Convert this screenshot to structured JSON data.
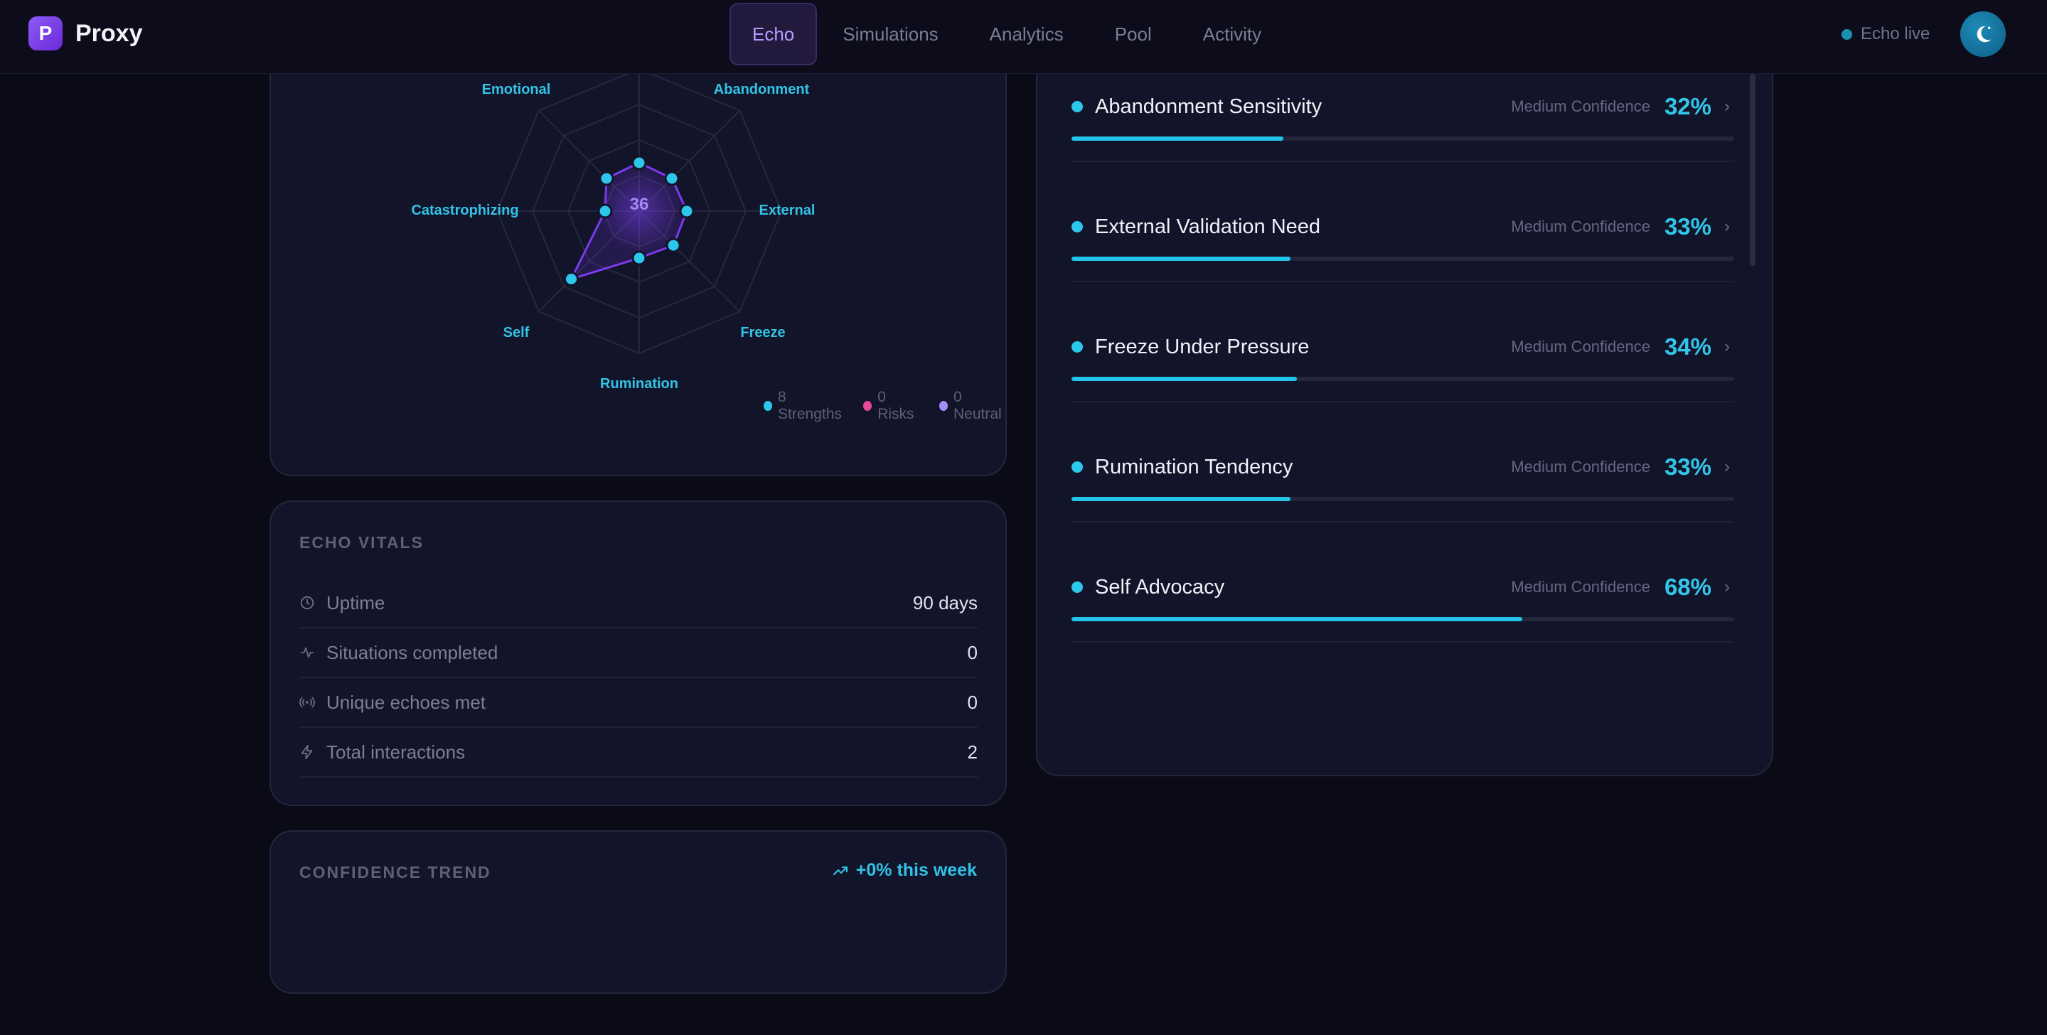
{
  "brand": {
    "logo_letter": "P",
    "name": "Proxy"
  },
  "nav": {
    "items": [
      {
        "label": "Echo",
        "active": true
      },
      {
        "label": "Simulations",
        "active": false
      },
      {
        "label": "Analytics",
        "active": false
      },
      {
        "label": "Pool",
        "active": false
      },
      {
        "label": "Activity",
        "active": false
      }
    ]
  },
  "status": {
    "live_label": "Echo live",
    "live_color": "#1d8fb0"
  },
  "radar": {
    "center_value": "36",
    "axes": [
      "Emotional",
      "Abandonment",
      "External",
      "Freeze",
      "Rumination",
      "Self",
      "Catastrophizing"
    ],
    "legend": [
      {
        "label": "8 Strengths",
        "color": "#2cc7ea"
      },
      {
        "label": "0 Risks",
        "color": "#ec4899"
      },
      {
        "label": "0 Neutral",
        "color": "#a78bfa"
      }
    ]
  },
  "vitals": {
    "title": "ECHO VITALS",
    "rows": [
      {
        "icon": "clock-icon",
        "label": "Uptime",
        "value": "90 days"
      },
      {
        "icon": "activity-icon",
        "label": "Situations completed",
        "value": "0"
      },
      {
        "icon": "radio-icon",
        "label": "Unique echoes met",
        "value": "0"
      },
      {
        "icon": "zap-icon",
        "label": "Total interactions",
        "value": "2"
      }
    ]
  },
  "trend": {
    "title": "CONFIDENCE TREND",
    "delta": "+0% this week"
  },
  "traits": [
    {
      "name": "",
      "confidence": "",
      "percent": "",
      "fill": 0.32
    },
    {
      "name": "Abandonment Sensitivity",
      "confidence": "Medium Confidence",
      "percent": "32%",
      "fill": 0.32
    },
    {
      "name": "External Validation Need",
      "confidence": "Medium Confidence",
      "percent": "33%",
      "fill": 0.33
    },
    {
      "name": "Freeze Under Pressure",
      "confidence": "Medium Confidence",
      "percent": "34%",
      "fill": 0.34
    },
    {
      "name": "Rumination Tendency",
      "confidence": "Medium Confidence",
      "percent": "33%",
      "fill": 0.33
    },
    {
      "name": "Self Advocacy",
      "confidence": "Medium Confidence",
      "percent": "68%",
      "fill": 0.68
    }
  ]
}
